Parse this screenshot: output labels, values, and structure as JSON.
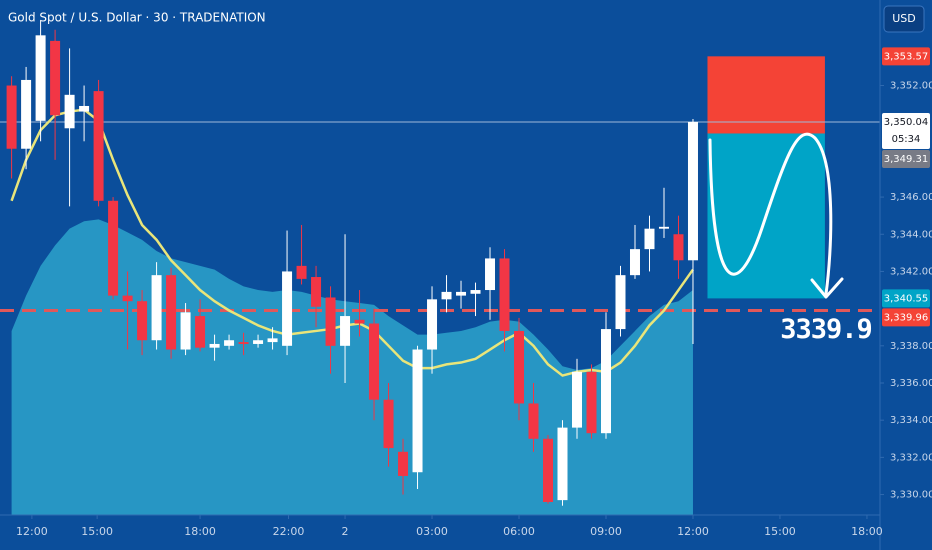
{
  "chart_data": {
    "type": "candlestick",
    "title": "Gold Spot / U.S. Dollar · 30 · TRADENATION",
    "currency": "USD",
    "x": [
      0,
      1,
      2,
      3,
      4,
      5,
      6,
      7,
      8,
      9,
      10,
      11,
      12,
      13,
      14,
      15,
      16,
      17,
      18,
      19,
      20,
      21,
      22,
      23,
      24,
      25,
      26,
      27,
      28,
      29,
      30,
      31,
      32,
      33,
      34,
      35,
      36,
      37,
      38,
      39,
      40,
      41,
      42,
      43,
      44,
      45,
      46,
      47
    ],
    "open": [
      3352.0,
      3348.6,
      3350.1,
      3354.4,
      3349.7,
      3350.6,
      3351.7,
      3345.8,
      3340.7,
      3340.4,
      3338.3,
      3341.8,
      3337.8,
      3339.6,
      3337.9,
      3338.0,
      3338.2,
      3338.1,
      3338.2,
      3338.0,
      3342.3,
      3341.7,
      3340.6,
      3338.0,
      3339.4,
      3339.2,
      3335.1,
      3332.3,
      3331.2,
      3337.8,
      3340.5,
      3340.7,
      3340.8,
      3341.0,
      3342.7,
      3338.8,
      3334.9,
      3333.0,
      3329.7,
      3333.6,
      3336.6,
      3333.3,
      3338.9,
      3341.8,
      3343.2,
      3344.3,
      3344.0,
      3342.6
    ],
    "high": [
      3352.5,
      3353.0,
      3355.5,
      3355.0,
      3354.0,
      3352.0,
      3352.3,
      3346.0,
      3342.0,
      3341.0,
      3342.5,
      3342.2,
      3340.3,
      3340.5,
      3338.6,
      3338.6,
      3338.7,
      3338.6,
      3339.0,
      3344.2,
      3344.5,
      3342.3,
      3341.2,
      3344.0,
      3341.0,
      3340.0,
      3336.0,
      3333.0,
      3338.0,
      3341.2,
      3341.8,
      3341.5,
      3341.4,
      3343.3,
      3343.2,
      3339.5,
      3336.0,
      3333.2,
      3334.0,
      3337.3,
      3337.0,
      3339.8,
      3342.3,
      3344.5,
      3345.0,
      3346.5,
      3345.0,
      3350.2
    ],
    "low": [
      3347.0,
      3347.5,
      3349.0,
      3348.0,
      3345.5,
      3349.0,
      3345.5,
      3340.5,
      3337.8,
      3337.5,
      3337.8,
      3337.3,
      3337.5,
      3337.7,
      3337.2,
      3337.8,
      3337.5,
      3337.9,
      3337.8,
      3337.5,
      3341.3,
      3339.0,
      3336.5,
      3336.0,
      3338.5,
      3334.0,
      3331.5,
      3330.0,
      3330.3,
      3336.5,
      3339.8,
      3340.0,
      3339.6,
      3339.4,
      3337.7,
      3334.0,
      3332.3,
      3329.5,
      3329.4,
      3333.0,
      3333.0,
      3333.0,
      3338.5,
      3341.6,
      3342.0,
      3343.8,
      3341.6,
      3338.1
    ],
    "close": [
      3348.6,
      3352.3,
      3354.7,
      3350.4,
      3351.5,
      3350.9,
      3345.8,
      3340.7,
      3340.4,
      3338.3,
      3341.8,
      3337.8,
      3339.8,
      3337.9,
      3338.1,
      3338.3,
      3338.1,
      3338.3,
      3338.4,
      3342.0,
      3341.6,
      3340.1,
      3338.0,
      3339.6,
      3339.2,
      3335.1,
      3332.5,
      3331.0,
      3337.8,
      3340.5,
      3340.9,
      3340.9,
      3341.0,
      3342.7,
      3338.8,
      3334.9,
      3333.0,
      3329.6,
      3333.6,
      3336.6,
      3333.3,
      3338.9,
      3341.8,
      3343.2,
      3344.3,
      3344.4,
      3342.6,
      3350.04
    ],
    "up_color": "#ffffff",
    "down_color": "#f23645",
    "ma": {
      "color": "#e9e57a",
      "values": [
        3345.8,
        3348.0,
        3349.6,
        3350.4,
        3350.6,
        3350.7,
        3350.1,
        3348.0,
        3346.1,
        3344.5,
        3343.7,
        3342.6,
        3341.8,
        3341.0,
        3340.4,
        3339.9,
        3339.5,
        3339.1,
        3338.8,
        3338.6,
        3338.7,
        3338.8,
        3338.9,
        3339.1,
        3339.2,
        3338.8,
        3338.0,
        3337.2,
        3336.8,
        3336.8,
        3337.0,
        3337.1,
        3337.3,
        3337.8,
        3338.3,
        3338.7,
        3338.0,
        3337.0,
        3336.4,
        3336.6,
        3336.7,
        3336.6,
        3337.1,
        3338.0,
        3339.1,
        3339.9,
        3341.0,
        3342.1
      ]
    },
    "band": {
      "color": "#2a9fc9",
      "values": [
        3338.8,
        3340.7,
        3342.3,
        3343.4,
        3344.3,
        3344.7,
        3344.8,
        3344.5,
        3344.1,
        3343.7,
        3343.1,
        3342.7,
        3342.5,
        3342.3,
        3342.1,
        3341.6,
        3341.2,
        3341.0,
        3340.9,
        3341.0,
        3340.9,
        3340.7,
        3340.5,
        3340.4,
        3340.3,
        3340.2,
        3339.6,
        3339.1,
        3338.6,
        3338.6,
        3338.7,
        3338.8,
        3339.0,
        3339.3,
        3339.4,
        3339.3,
        3338.6,
        3337.8,
        3336.9,
        3336.7,
        3336.8,
        3337.2,
        3338.0,
        3338.8,
        3339.6,
        3340.2,
        3340.4,
        3341.0
      ]
    },
    "position": {
      "stop": 3353.57,
      "entry": 3349.42,
      "target": 3340.55,
      "x": [
        48,
        56.1
      ],
      "stop_color": "#f44336",
      "target_color": "#00a4c7"
    },
    "hlines": [
      {
        "value": 3339.9,
        "color": "#e0585a",
        "style": "dashed"
      },
      {
        "value": 3350.04,
        "color": "#9fb8d8",
        "style": "solid"
      }
    ],
    "annotation": "3339.9",
    "price_labels": [
      {
        "value": 3353.57,
        "label": "3,353.57",
        "color": "#f44336",
        "text_color": "#ffffff"
      },
      {
        "value": 3350.04,
        "label": "3,350.04",
        "color": "#ffffff",
        "text_color": "#131722",
        "countdown": "05:34"
      },
      {
        "value": 3349.31,
        "label": "3,349.31",
        "color": "#787b86",
        "text_color": "#ffffff"
      },
      {
        "value": 3340.55,
        "label": "3,340.55",
        "color": "#00a4c7",
        "text_color": "#ffffff"
      },
      {
        "value": 3339.96,
        "label": "3,339.96",
        "color": "#f44336",
        "text_color": "#ffffff"
      }
    ],
    "xlim": [
      -0.8,
      59.9
    ],
    "ylim": [
      3328.9,
      3356.6
    ],
    "yticks": [
      {
        "value": 3352,
        "label": "3,352.00"
      },
      {
        "value": 3346,
        "label": "3,346.00"
      },
      {
        "value": 3344,
        "label": "3,344.00"
      },
      {
        "value": 3342,
        "label": "3,342.00"
      },
      {
        "value": 3338,
        "label": "3,338.00"
      },
      {
        "value": 3336,
        "label": "3,336.00"
      },
      {
        "value": 3334,
        "label": "3,334.00"
      },
      {
        "value": 3332,
        "label": "3,332.00"
      },
      {
        "value": 3330,
        "label": "3,330.00"
      }
    ],
    "xticks": [
      {
        "value": 1.4,
        "label": "12:00"
      },
      {
        "value": 5.9,
        "label": "15:00"
      },
      {
        "value": 13,
        "label": "18:00"
      },
      {
        "value": 19.1,
        "label": "22:00"
      },
      {
        "value": 23,
        "label": "2"
      },
      {
        "value": 29,
        "label": "03:00"
      },
      {
        "value": 35,
        "label": "06:00"
      },
      {
        "value": 41,
        "label": "09:00"
      },
      {
        "value": 47,
        "label": "12:00"
      },
      {
        "value": 53,
        "label": "15:00"
      },
      {
        "value": 59,
        "label": "18:00"
      }
    ]
  }
}
